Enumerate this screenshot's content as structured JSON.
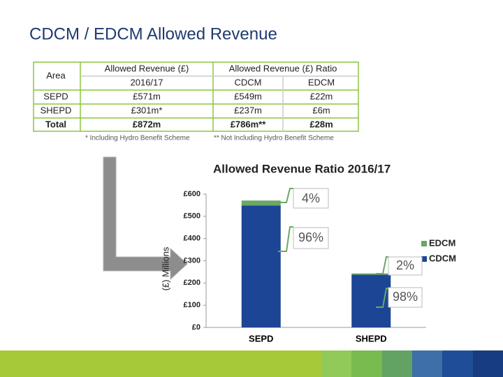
{
  "title": "CDCM / EDCM Allowed Revenue",
  "table": {
    "header": [
      "Area",
      "Allowed Revenue (£)",
      "Allowed Revenue (£) Ratio"
    ],
    "subheader": [
      "2016/17",
      "CDCM",
      "EDCM"
    ],
    "rows": [
      [
        "SEPD",
        "£571m",
        "£549m",
        "£22m"
      ],
      [
        "SHEPD",
        "£301m*",
        "£237m",
        "£6m"
      ],
      [
        "Total",
        "£872m",
        "£786m**",
        "£28m"
      ]
    ],
    "notes": [
      "* Including Hydro Benefit Scheme",
      "** Not Including Hydro Benefit Scheme"
    ]
  },
  "chart_data": {
    "type": "stacked_bar",
    "title": "Allowed Revenue Ratio 2016/17",
    "y_label": "(£) Millions",
    "categories": [
      "SEPD",
      "SHEPD"
    ],
    "series": [
      {
        "name": "CDCM",
        "color": "#1c4595",
        "values": [
          549,
          237
        ]
      },
      {
        "name": "EDCM",
        "color": "#6aa864",
        "values": [
          22,
          6
        ]
      }
    ],
    "annotations": [
      "4%",
      "96%",
      "2%",
      "98%"
    ],
    "ylim": [
      0,
      600
    ],
    "yticks": [
      {
        "value": 0,
        "label": "£0"
      },
      {
        "value": 100,
        "label": "£100"
      },
      {
        "value": 200,
        "label": "£200"
      },
      {
        "value": 300,
        "label": "£300"
      },
      {
        "value": 400,
        "label": "£400"
      },
      {
        "value": 500,
        "label": "£500"
      },
      {
        "value": 600,
        "label": "£600"
      }
    ],
    "legend": "right"
  }
}
